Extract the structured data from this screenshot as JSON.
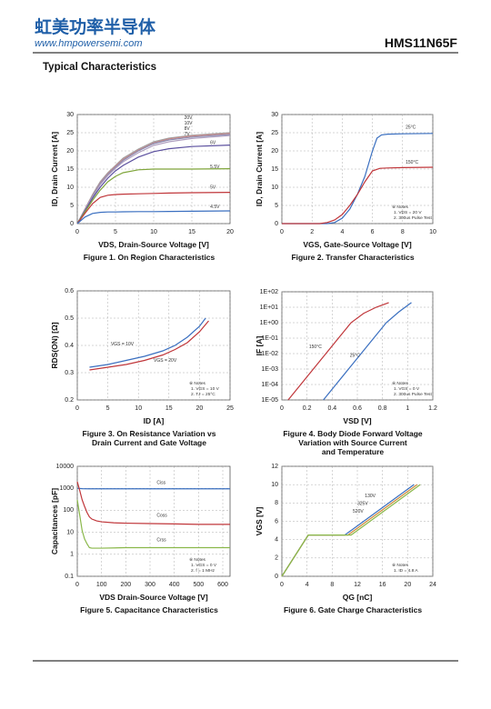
{
  "header": {
    "logo_cn": "虹美功率半导体",
    "website": "www.hmpowersemi.com",
    "part_number": "HMS11N65F"
  },
  "section_title": "Typical Characteristics",
  "chart_data": [
    {
      "type": "line",
      "caption": [
        "Figure 1. On Region Characteristics"
      ],
      "xlabel": "VDS, Drain-Source Voltage  [V]",
      "ylabel": "ID, Drain Current  [A]",
      "xlim": [
        0,
        20
      ],
      "ylim": [
        0,
        30
      ],
      "xticks": [
        0,
        5,
        10,
        15,
        20
      ],
      "yticks": [
        0,
        5,
        10,
        15,
        20,
        25,
        30
      ],
      "grid": true,
      "log_y": false,
      "series": [
        {
          "name": "20V",
          "color": "#a0a0a0",
          "x": [
            0,
            1,
            2,
            3,
            4,
            5,
            6,
            8,
            10,
            12,
            15,
            20
          ],
          "values": [
            0,
            4,
            8,
            11.5,
            14,
            16,
            18,
            20.5,
            22.5,
            23.5,
            24.3,
            25
          ]
        },
        {
          "name": "10V",
          "color": "#c98a8a",
          "x": [
            0,
            1,
            2,
            3,
            4,
            5,
            6,
            8,
            10,
            12,
            15,
            20
          ],
          "values": [
            0,
            3.9,
            7.8,
            11.2,
            13.7,
            15.8,
            17.7,
            20.2,
            22.2,
            23.3,
            24.1,
            24.8
          ]
        },
        {
          "name": "8V",
          "color": "#8a8ab0",
          "x": [
            0,
            1,
            2,
            3,
            4,
            5,
            6,
            8,
            10,
            12,
            15,
            20
          ],
          "values": [
            0,
            3.8,
            7.6,
            11,
            13.5,
            15.5,
            17.4,
            20,
            22,
            23,
            23.8,
            24.5
          ]
        },
        {
          "name": "7V",
          "color": "#b0a0c0",
          "x": [
            0,
            1,
            2,
            3,
            4,
            5,
            6,
            8,
            10,
            12,
            15,
            20
          ],
          "values": [
            0,
            3.7,
            7.4,
            10.7,
            13.2,
            15.2,
            17,
            19.5,
            21.5,
            22.5,
            23.4,
            24.2
          ]
        },
        {
          "name": "6V",
          "color": "#5b4f9e",
          "x": [
            0,
            1,
            2,
            3,
            4,
            5,
            6,
            8,
            10,
            12,
            15,
            20
          ],
          "values": [
            0,
            3.5,
            7,
            10,
            12.5,
            14.5,
            16,
            18.3,
            19.8,
            20.6,
            21.2,
            21.6
          ]
        },
        {
          "name": "5.5V",
          "color": "#7fa53a",
          "x": [
            0,
            1,
            2,
            3,
            4,
            5,
            6,
            8,
            10,
            12,
            15,
            20
          ],
          "values": [
            0,
            3.2,
            6.4,
            9.2,
            11.5,
            13,
            14,
            14.8,
            15,
            15,
            15,
            15.1
          ]
        },
        {
          "name": "5V",
          "color": "#c0363a",
          "x": [
            0,
            1,
            2,
            3,
            4,
            5,
            6,
            8,
            10,
            12,
            15,
            20
          ],
          "values": [
            0,
            2.8,
            5.5,
            7.2,
            7.8,
            8,
            8.1,
            8.2,
            8.3,
            8.4,
            8.5,
            8.6
          ]
        },
        {
          "name": "4.5V",
          "color": "#3a6fc0",
          "x": [
            0,
            1,
            2,
            3,
            4,
            5,
            6,
            8,
            10,
            12,
            15,
            20
          ],
          "values": [
            0,
            1.8,
            2.8,
            3.1,
            3.2,
            3.2,
            3.25,
            3.3,
            3.3,
            3.35,
            3.4,
            3.5
          ]
        }
      ]
    },
    {
      "type": "line",
      "caption": [
        "Figure 2. Transfer Characteristics"
      ],
      "xlabel": "VGS, Gate-Source Voltage [V]",
      "ylabel": "ID, Drain Current [A]",
      "xlim": [
        0,
        10
      ],
      "ylim": [
        0,
        30
      ],
      "xticks": [
        0,
        2,
        4,
        6,
        8,
        10
      ],
      "yticks": [
        0,
        5,
        10,
        15,
        20,
        25,
        30
      ],
      "grid": true,
      "log_y": false,
      "notes": [
        "※ Notes",
        "1. VDS = 20 V",
        "2. 300us Pulse Test"
      ],
      "series": [
        {
          "name": "25°C",
          "color": "#3a6fc0",
          "x": [
            0,
            3,
            3.5,
            4,
            4.5,
            5,
            5.5,
            6,
            6.3,
            6.6,
            7,
            8,
            10
          ],
          "values": [
            0,
            0,
            0.3,
            1.5,
            4,
            8,
            13,
            20,
            23.5,
            24.4,
            24.6,
            24.7,
            24.8
          ]
        },
        {
          "name": "150°C",
          "color": "#c0363a",
          "x": [
            0,
            2.5,
            3,
            3.5,
            4,
            4.5,
            5,
            5.5,
            6,
            6.5,
            7,
            8,
            10
          ],
          "values": [
            0,
            0,
            0.3,
            1,
            2.5,
            5,
            8,
            11.5,
            14.5,
            15.2,
            15.3,
            15.4,
            15.5
          ]
        }
      ]
    },
    {
      "type": "line",
      "caption": [
        "Figure 3. On Resistance Variation vs",
        "Drain Current and Gate Voltage"
      ],
      "xlabel": "ID  [A]",
      "ylabel": "RDS(ON) [Ω]",
      "xlim": [
        0,
        25
      ],
      "ylim": [
        0.2,
        0.6
      ],
      "xticks": [
        0,
        5,
        10,
        15,
        20,
        25
      ],
      "yticks": [
        0.2,
        0.3,
        0.4,
        0.5,
        0.6
      ],
      "grid": true,
      "log_y": false,
      "notes": [
        "※ Notes",
        "1. VGS = 10 V",
        "2. TJ = 25°C"
      ],
      "series": [
        {
          "name": "VGS = 10V",
          "color": "#3a6fc0",
          "x": [
            2,
            5,
            8,
            11,
            14,
            16,
            18,
            20,
            21
          ],
          "values": [
            0.32,
            0.33,
            0.345,
            0.36,
            0.38,
            0.4,
            0.43,
            0.47,
            0.5
          ]
        },
        {
          "name": "VGS = 20V",
          "color": "#c0363a",
          "x": [
            2,
            5,
            8,
            11,
            14,
            16,
            18,
            20,
            21.5
          ],
          "values": [
            0.31,
            0.32,
            0.33,
            0.345,
            0.365,
            0.385,
            0.41,
            0.45,
            0.49
          ]
        }
      ]
    },
    {
      "type": "line",
      "caption": [
        "Figure 4. Body Diode Forward Voltage",
        "Variation with Source Current",
        "and Temperature"
      ],
      "xlabel": "VSD [V]",
      "ylabel": "IF [A]",
      "xlim": [
        0,
        1.2
      ],
      "ylim": [
        1e-05,
        100
      ],
      "xticks": [
        0,
        0.2,
        0.4,
        0.6,
        0.8,
        1,
        1.2
      ],
      "yticks": [
        {
          "value": 1e-05,
          "label": "1E-05"
        },
        {
          "value": 0.0001,
          "label": "1E-04"
        },
        {
          "value": 0.001,
          "label": "1E-03"
        },
        {
          "value": 0.01,
          "label": "1E-02"
        },
        {
          "value": 0.1,
          "label": "1E-01"
        },
        {
          "value": 1,
          "label": "1E+00"
        },
        {
          "value": 10,
          "label": "1E+01"
        },
        {
          "value": 100,
          "label": "1E+02"
        }
      ],
      "grid": true,
      "log_y": true,
      "notes": [
        "※ Notes",
        "1. VGS = 0 V",
        "2. 300us Pulse Test"
      ],
      "series": [
        {
          "name": "150°C",
          "color": "#c0363a",
          "x": [
            0.05,
            0.15,
            0.25,
            0.35,
            0.45,
            0.55,
            0.65,
            0.75,
            0.85
          ],
          "values": [
            1e-05,
            0.0001,
            0.001,
            0.01,
            0.1,
            1,
            4,
            10,
            20
          ]
        },
        {
          "name": "25°C",
          "color": "#3a6fc0",
          "x": [
            0.33,
            0.43,
            0.53,
            0.63,
            0.73,
            0.83,
            0.93,
            1.03
          ],
          "values": [
            1e-05,
            0.0001,
            0.001,
            0.01,
            0.1,
            1,
            5,
            20
          ]
        }
      ]
    },
    {
      "type": "line",
      "caption": [
        "Figure 5. Capacitance Characteristics"
      ],
      "xlabel": "VDS Drain-Source Voltage [V]",
      "ylabel": "Capacitances [pF]",
      "xlim": [
        0,
        630
      ],
      "ylim": [
        0.1,
        10000
      ],
      "xticks": [
        0,
        100,
        200,
        300,
        400,
        500,
        600
      ],
      "yticks": [
        0.1,
        1,
        10,
        100,
        1000,
        10000
      ],
      "grid": true,
      "log_y": true,
      "notes": [
        "※ Notes",
        "1. VGS = 0 V",
        "2. f = 1 MHz"
      ],
      "series": [
        {
          "name": "Ciss",
          "color": "#3a6fc0",
          "x": [
            0,
            20,
            50,
            100,
            200,
            300,
            400,
            500,
            600,
            630
          ],
          "values": [
            1000,
            960,
            950,
            950,
            950,
            950,
            950,
            950,
            950,
            950
          ]
        },
        {
          "name": "Coss",
          "color": "#c0363a",
          "x": [
            0,
            10,
            20,
            30,
            40,
            50,
            60,
            80,
            100,
            150,
            200,
            300,
            400,
            500,
            600,
            630
          ],
          "values": [
            2000,
            800,
            300,
            150,
            80,
            50,
            40,
            33,
            30,
            27,
            26,
            25,
            24,
            23,
            23,
            23
          ]
        },
        {
          "name": "Crss",
          "color": "#8ab84a",
          "x": [
            0,
            10,
            20,
            30,
            40,
            50,
            60,
            100,
            200,
            300,
            400,
            500,
            600,
            630
          ],
          "values": [
            300,
            60,
            12,
            5,
            3,
            2,
            1.9,
            1.9,
            2,
            2,
            2,
            2,
            2,
            2
          ]
        }
      ]
    },
    {
      "type": "line",
      "caption": [
        "Figure 6. Gate Charge Characteristics"
      ],
      "xlabel": "QG [nC]",
      "ylabel": "VGS [V]",
      "xlim": [
        0,
        24
      ],
      "ylim": [
        0,
        12
      ],
      "xticks": [
        0,
        4,
        8,
        12,
        16,
        20,
        24
      ],
      "yticks": [
        0,
        2,
        4,
        6,
        8,
        10,
        12
      ],
      "grid": true,
      "log_y": false,
      "notes": [
        "※ Notes",
        "1. ID = 4.8 A"
      ],
      "series": [
        {
          "name": "130V",
          "color": "#3a6fc0",
          "x": [
            0,
            4.2,
            10,
            11,
            21
          ],
          "values": [
            0,
            4.5,
            4.5,
            5,
            10
          ]
        },
        {
          "name": "325V",
          "color": "#d08a3a",
          "x": [
            0,
            4.2,
            10.5,
            11.5,
            21.5
          ],
          "values": [
            0,
            4.5,
            4.5,
            5,
            10
          ]
        },
        {
          "name": "520V",
          "color": "#8ab84a",
          "x": [
            0,
            4.2,
            11,
            12,
            22
          ],
          "values": [
            0,
            4.5,
            4.5,
            5,
            10
          ]
        }
      ]
    }
  ]
}
